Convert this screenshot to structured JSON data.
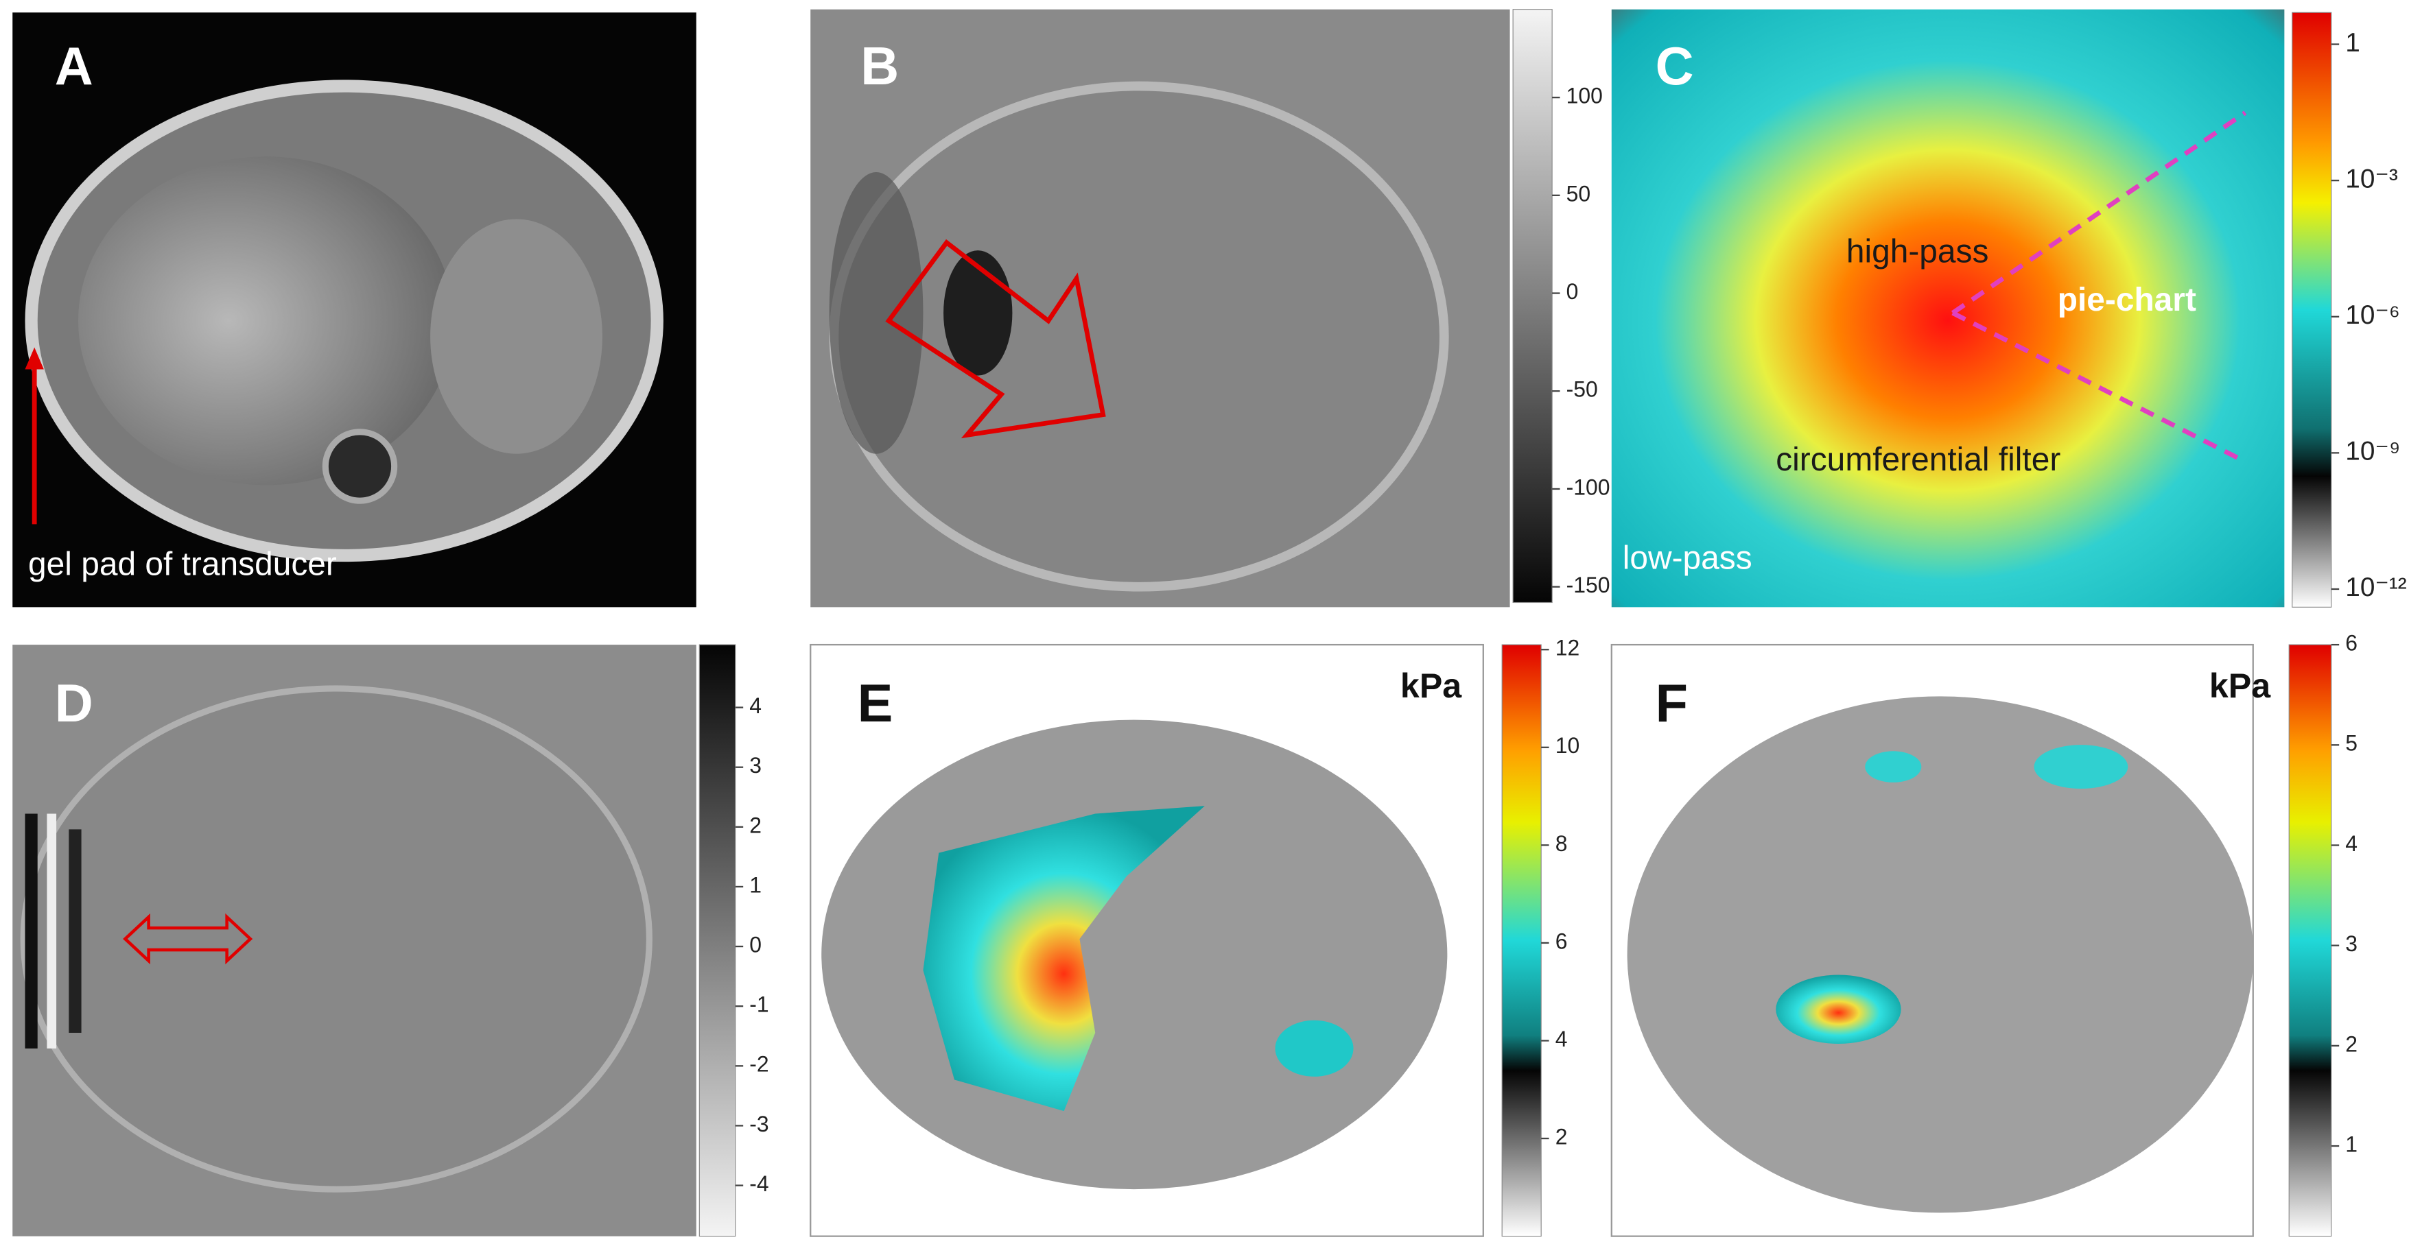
{
  "panels": [
    {
      "label": "A",
      "annotation": "gel pad of transducer"
    },
    {
      "label": "B",
      "colorbar": {
        "ylim": [
          -158,
          145
        ],
        "ticks": [
          100,
          50,
          0,
          -50,
          -100,
          -150
        ]
      }
    },
    {
      "label": "C",
      "annotations": [
        "high-pass",
        "pie-chart",
        "circumferential filter",
        "low-pass"
      ],
      "colorbar": {
        "log": true,
        "ylim": [
          4e-13,
          5
        ],
        "ticks": [
          1,
          {
            "value": 0.001,
            "label": "10⁻³"
          },
          {
            "value": 1e-06,
            "label": "10⁻⁶"
          },
          {
            "value": 1e-09,
            "label": "10⁻⁹"
          },
          {
            "value": 1e-12,
            "label": "10⁻¹²"
          }
        ]
      }
    },
    {
      "label": "D",
      "colorbar": {
        "ylim": [
          -4.85,
          5.05
        ],
        "ticks": [
          4,
          3,
          2,
          1,
          0,
          -1,
          -2,
          -3,
          -4
        ]
      }
    },
    {
      "label": "E",
      "unit": "kPa",
      "colorbar": {
        "ylim": [
          0,
          12.1
        ],
        "ticks": [
          12,
          10,
          8,
          6,
          4,
          2
        ]
      }
    },
    {
      "label": "F",
      "unit": "kPa",
      "colorbar": {
        "ylim": [
          0.1,
          6
        ],
        "ticks": [
          6,
          5,
          4,
          3,
          2,
          1
        ]
      }
    }
  ]
}
